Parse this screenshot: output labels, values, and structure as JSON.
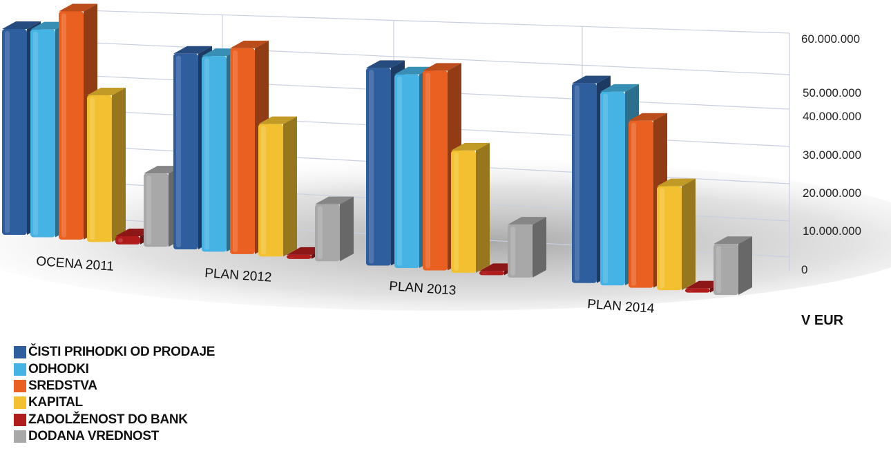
{
  "chart_data": {
    "type": "bar",
    "categories": [
      "OCENA 2011",
      "PLAN 2012",
      "PLAN 2013",
      "PLAN 2014"
    ],
    "series": [
      {
        "name": "ČISTI PRIHODKI OD PRODAJE",
        "color": "#2f5e9e",
        "values": [
          50500000,
          48000000,
          48500000,
          49000000
        ]
      },
      {
        "name": "ODHODKI",
        "color": "#45b3e3",
        "values": [
          51000000,
          48000000,
          47500000,
          47500000
        ]
      },
      {
        "name": "SREDSTVA",
        "color": "#ea6020",
        "values": [
          56000000,
          50500000,
          49000000,
          41000000
        ]
      },
      {
        "name": "KAPITAL",
        "color": "#f2c030",
        "values": [
          36000000,
          32500000,
          30000000,
          25500000
        ]
      },
      {
        "name": "ZADOLŽENOST DO BANK",
        "color": "#b01c1c",
        "values": [
          2000000,
          1000000,
          1000000,
          1000000
        ]
      },
      {
        "name": "DODANA VREDNOST",
        "color": "#a8a8a8",
        "values": [
          18000000,
          14000000,
          13000000,
          12500000
        ]
      }
    ],
    "y_ticks": [
      "60.000.000",
      "50.000.000",
      "40.000.000",
      "30.000.000",
      "20.000.000",
      "10.000.000",
      "0"
    ],
    "ylim": [
      0,
      60000000
    ],
    "unit_label": "V EUR",
    "grid": true,
    "legend_position": "bottom-left"
  }
}
